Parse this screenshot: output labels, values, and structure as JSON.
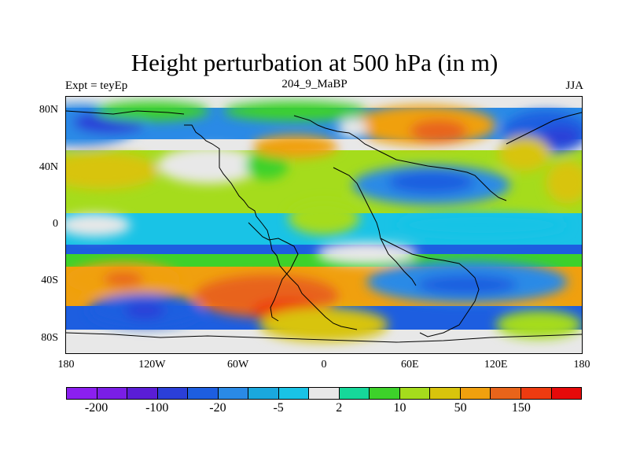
{
  "chart_data": {
    "type": "heatmap",
    "title": "Height perturbation at 500 hPa (in m)",
    "left_label": "Expt = teyEp",
    "center_label": "204_9_MaBP",
    "right_label": "JJA",
    "xlim": [
      -180,
      180
    ],
    "ylim": [
      -90,
      90
    ],
    "x_ticks": [
      {
        "value": -180,
        "label": "180"
      },
      {
        "value": -120,
        "label": "120W"
      },
      {
        "value": -60,
        "label": "60W"
      },
      {
        "value": 0,
        "label": "0"
      },
      {
        "value": 60,
        "label": "60E"
      },
      {
        "value": 120,
        "label": "120E"
      },
      {
        "value": 180,
        "label": "180"
      }
    ],
    "y_ticks": [
      {
        "value": 80,
        "label": "80N"
      },
      {
        "value": 40,
        "label": "40N"
      },
      {
        "value": 0,
        "label": "0"
      },
      {
        "value": -40,
        "label": "40S"
      },
      {
        "value": -80,
        "label": "80S"
      }
    ],
    "colorbar": {
      "colors": [
        "#8b1ff0",
        "#7a1ee6",
        "#5a1dd6",
        "#2b3fd8",
        "#1d5ee0",
        "#2a8ae6",
        "#1aa8de",
        "#19c3e6",
        "#e8e8e8",
        "#16d89a",
        "#3dd22a",
        "#a5dc1c",
        "#d8c40c",
        "#f0a00e",
        "#e8641a",
        "#ee3b10",
        "#e60a0a"
      ],
      "labels": [
        {
          "text": "-200",
          "boundary": 1
        },
        {
          "text": "-100",
          "boundary": 3
        },
        {
          "text": "-20",
          "boundary": 5
        },
        {
          "text": "-5",
          "boundary": 7
        },
        {
          "text": "2",
          "boundary": 9
        },
        {
          "text": "10",
          "boundary": 11
        },
        {
          "text": "50",
          "boundary": 13
        },
        {
          "text": "150",
          "boundary": 15
        }
      ]
    },
    "field_blobs": [
      {
        "lon": -170,
        "lat": 70,
        "rx": 40,
        "ry": 15,
        "level": 5
      },
      {
        "lon": -150,
        "lat": 72,
        "rx": 25,
        "ry": 8,
        "level": 3
      },
      {
        "lon": -120,
        "lat": 80,
        "rx": 40,
        "ry": 7,
        "level": 10
      },
      {
        "lon": -20,
        "lat": 80,
        "rx": 50,
        "ry": 7,
        "level": 10
      },
      {
        "lon": 70,
        "lat": 70,
        "rx": 50,
        "ry": 14,
        "level": 13
      },
      {
        "lon": 80,
        "lat": 66,
        "rx": 20,
        "ry": 8,
        "level": 14
      },
      {
        "lon": 20,
        "lat": 68,
        "rx": 10,
        "ry": 7,
        "level": 8
      },
      {
        "lon": 155,
        "lat": 65,
        "rx": 30,
        "ry": 15,
        "level": 4
      },
      {
        "lon": 165,
        "lat": 62,
        "rx": 14,
        "ry": 7,
        "level": 3
      },
      {
        "lon": -155,
        "lat": 38,
        "rx": 40,
        "ry": 13,
        "level": 12
      },
      {
        "lon": -80,
        "lat": 42,
        "rx": 30,
        "ry": 10,
        "level": 5
      },
      {
        "lon": -78,
        "lat": 42,
        "rx": 16,
        "ry": 6,
        "level": 3
      },
      {
        "lon": -80,
        "lat": 42,
        "rx": 36,
        "ry": 13,
        "level": 8
      },
      {
        "lon": -40,
        "lat": 42,
        "rx": 15,
        "ry": 10,
        "level": 10
      },
      {
        "lon": -20,
        "lat": 55,
        "rx": 30,
        "ry": 8,
        "level": 13
      },
      {
        "lon": 75,
        "lat": 28,
        "rx": 55,
        "ry": 14,
        "level": 5
      },
      {
        "lon": 75,
        "lat": 30,
        "rx": 30,
        "ry": 8,
        "level": 4
      },
      {
        "lon": 0,
        "lat": 5,
        "rx": 25,
        "ry": 12,
        "level": 11
      },
      {
        "lon": 140,
        "lat": 50,
        "rx": 18,
        "ry": 12,
        "level": 12
      },
      {
        "lon": 170,
        "lat": 30,
        "rx": 15,
        "ry": 15,
        "level": 12
      },
      {
        "lon": -160,
        "lat": 0,
        "rx": 25,
        "ry": 8,
        "level": 8
      },
      {
        "lon": 110,
        "lat": 0,
        "rx": 60,
        "ry": 8,
        "level": 7
      },
      {
        "lon": -40,
        "lat": -50,
        "rx": 50,
        "ry": 15,
        "level": 14
      },
      {
        "lon": -25,
        "lat": -60,
        "rx": 25,
        "ry": 8,
        "level": 15
      },
      {
        "lon": -140,
        "lat": -38,
        "rx": 40,
        "ry": 12,
        "level": 13
      },
      {
        "lon": -140,
        "lat": -38,
        "rx": 14,
        "ry": 5,
        "level": 14
      },
      {
        "lon": 0,
        "lat": -70,
        "rx": 45,
        "ry": 12,
        "level": 12
      },
      {
        "lon": 100,
        "lat": -40,
        "rx": 70,
        "ry": 15,
        "level": 5
      },
      {
        "lon": 100,
        "lat": -42,
        "rx": 35,
        "ry": 7,
        "level": 4
      },
      {
        "lon": -125,
        "lat": -60,
        "rx": 40,
        "ry": 12,
        "level": 4
      },
      {
        "lon": -125,
        "lat": -60,
        "rx": 14,
        "ry": 6,
        "level": 3
      },
      {
        "lon": 30,
        "lat": -20,
        "rx": 35,
        "ry": 8,
        "level": 8
      },
      {
        "lon": 150,
        "lat": -70,
        "rx": 30,
        "ry": 10,
        "level": 11
      }
    ]
  }
}
